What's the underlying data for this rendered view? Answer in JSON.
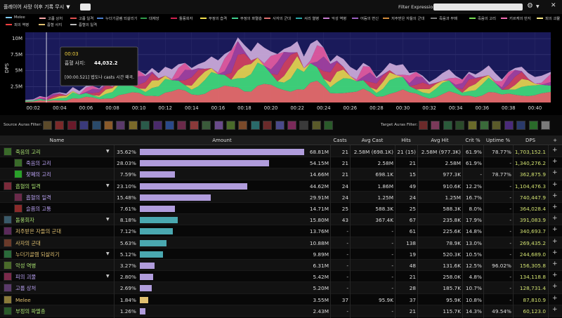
{
  "topbar": {
    "mode_label": "플레이어 사망 이후 기록 무시",
    "dropdown_icon": "chevron-down-icon",
    "filter_label": "Filter Expression:",
    "filter_value": "",
    "gear_icon": "gear-icon",
    "close_icon": "close-icon"
  },
  "legend": [
    {
      "label": "Melee",
      "color": "#7ec8f0"
    },
    {
      "label": "고룹 상처",
      "color": "#f7a8a8"
    },
    {
      "label": "고룹 일격",
      "color": "#e05050"
    },
    {
      "label": "누더기골렘 되살리기",
      "color": "#4a7fd0"
    },
    {
      "label": "대재앙",
      "color": "#2f9c4a"
    },
    {
      "label": "돌풍회자",
      "color": "#d02050"
    },
    {
      "label": "부정의 습격",
      "color": "#f4e04d"
    },
    {
      "label": "부정의 파멸층",
      "color": "#3fcf8e"
    },
    {
      "label": "사자의 군대",
      "color": "#e07070"
    },
    {
      "label": "서리 열병",
      "color": "#2aa8a8"
    },
    {
      "label": "악성 역병",
      "color": "#c87bd0"
    },
    {
      "label": "어둠의 변신",
      "color": "#9b5fc0"
    },
    {
      "label": "저주받은 자들의 군대",
      "color": "#d08a3a"
    },
    {
      "label": "죽음과 부패",
      "color": "#7a7a7a"
    },
    {
      "label": "죽음의 고리",
      "color": "#77dd55"
    },
    {
      "label": "키르케의 반지",
      "color": "#f06ab0"
    },
    {
      "label": "피의 괴물",
      "color": "#ffee88"
    },
    {
      "label": "피의 역병",
      "color": "#ff4040"
    },
    {
      "label": "흡혈 사지",
      "color": "#e0c070"
    },
    {
      "label": "흡혈의 일격",
      "color": "#bbbbbb"
    }
  ],
  "chart_data": {
    "type": "area",
    "title": "",
    "ylabel": "DPS",
    "xlabel": "",
    "x_ticks": [
      "00:02",
      "00:04",
      "00:06",
      "00:08",
      "00:10",
      "00:12",
      "00:14",
      "00:16",
      "00:18",
      "00:20",
      "00:22",
      "00:24",
      "00:26",
      "00:28",
      "00:30",
      "00:32",
      "00:34",
      "00:36",
      "00:38",
      "00:40"
    ],
    "y_ticks": [
      "2.5M",
      "5M",
      "7.5M",
      "10M"
    ],
    "ylim": [
      0,
      11000000
    ],
    "xlim": [
      1.4,
      41.2
    ],
    "total_series": [
      [
        1.4,
        0.4
      ],
      [
        2.0,
        0.5
      ],
      [
        2.5,
        1.0
      ],
      [
        3.0,
        0.8
      ],
      [
        3.5,
        1.4
      ],
      [
        4.0,
        1.6
      ],
      [
        4.5,
        1.4
      ],
      [
        5.0,
        2.4
      ],
      [
        5.5,
        1.8
      ],
      [
        6.0,
        2.6
      ],
      [
        6.5,
        2.6
      ],
      [
        7.0,
        2.2
      ],
      [
        7.5,
        3.2
      ],
      [
        8.0,
        3.0
      ],
      [
        8.5,
        4.2
      ],
      [
        9.0,
        4.0
      ],
      [
        9.5,
        4.6
      ],
      [
        10.0,
        5.0
      ],
      [
        10.5,
        4.4
      ],
      [
        11.0,
        5.4
      ],
      [
        11.5,
        4.6
      ],
      [
        12.0,
        5.6
      ],
      [
        12.5,
        5.2
      ],
      [
        13.0,
        6.0
      ],
      [
        13.5,
        6.2
      ],
      [
        14.0,
        5.4
      ],
      [
        14.5,
        6.0
      ],
      [
        15.0,
        6.4
      ],
      [
        15.5,
        7.2
      ],
      [
        16.0,
        6.6
      ],
      [
        16.5,
        7.6
      ],
      [
        17.0,
        8.2
      ],
      [
        17.5,
        10.2
      ],
      [
        18.0,
        9.0
      ],
      [
        18.5,
        8.0
      ],
      [
        19.0,
        9.4
      ],
      [
        19.5,
        8.6
      ],
      [
        20.0,
        8.0
      ],
      [
        20.5,
        7.6
      ],
      [
        21.0,
        8.4
      ],
      [
        21.5,
        8.8
      ],
      [
        22.0,
        9.6
      ],
      [
        22.5,
        7.2
      ],
      [
        23.0,
        9.2
      ],
      [
        23.5,
        9.8
      ],
      [
        24.0,
        8.6
      ],
      [
        24.5,
        6.4
      ],
      [
        25.0,
        7.4
      ],
      [
        25.5,
        6.8
      ],
      [
        26.0,
        5.6
      ],
      [
        26.5,
        5.0
      ],
      [
        27.0,
        6.2
      ],
      [
        27.5,
        5.6
      ],
      [
        28.0,
        4.0
      ],
      [
        28.5,
        5.0
      ],
      [
        29.0,
        6.2
      ],
      [
        29.5,
        5.8
      ],
      [
        30.0,
        6.0
      ],
      [
        30.5,
        4.6
      ],
      [
        31.0,
        4.8
      ],
      [
        31.5,
        4.2
      ],
      [
        32.0,
        3.2
      ],
      [
        32.5,
        3.8
      ],
      [
        33.0,
        4.6
      ],
      [
        33.5,
        5.2
      ],
      [
        34.0,
        4.2
      ],
      [
        34.5,
        3.6
      ],
      [
        35.0,
        4.8
      ],
      [
        35.5,
        4.4
      ],
      [
        36.0,
        5.0
      ],
      [
        36.5,
        5.8
      ],
      [
        37.0,
        4.6
      ],
      [
        37.5,
        3.6
      ],
      [
        38.0,
        4.8
      ],
      [
        38.5,
        5.4
      ],
      [
        39.0,
        5.6
      ],
      [
        39.5,
        4.6
      ],
      [
        40.0,
        4.0
      ],
      [
        40.5,
        4.2
      ],
      [
        41.2,
        4.8
      ]
    ],
    "grid": true,
    "tooltip": {
      "time": "00:03",
      "series": "흡혈 사지:",
      "value": "44,032.2",
      "event": "[00:00.521] 법도나 casts 시간 왜곡."
    }
  },
  "auras": {
    "source_label": "Source Auras Filter:",
    "target_label": "Target Auras Filter:",
    "source_colors": [
      "#5b4a2a",
      "#7a2a2a",
      "#6a1a2a",
      "#3a3a7a",
      "#2a4a6a",
      "#8a5a2a",
      "#5a3a6a",
      "#7a6a2a",
      "#2a5a4a",
      "#4a2a6a",
      "#2a4a8a",
      "#6a2a4a",
      "#8a3a3a",
      "#3a5a3a",
      "#6a4a8a",
      "#4a6a2a",
      "#7a4a2a",
      "#2a6a6a",
      "#6a2a2a",
      "#4a4a8a",
      "#7a2a5a",
      "#3a3a3a",
      "#5a5a2a",
      "#2a5a2a"
    ],
    "target_colors": [
      "#6a2a2a",
      "#7a3a5a",
      "#2a5a3a",
      "#2a4a2a",
      "#6a6a2a",
      "#3a6a3a",
      "#5a5a2a",
      "#4a2a7a",
      "#2a3a6a",
      "#2a6a2a",
      "#7a7a7a"
    ]
  },
  "table": {
    "headers": {
      "name": "Name",
      "amount": "Amount",
      "casts": "Casts",
      "avg_cast": "Avg Cast",
      "hits": "Hits",
      "avg_hit": "Avg Hit",
      "crit": "Crit %",
      "uptime": "Uptime %",
      "dps": "DPS",
      "plus": "+"
    },
    "rows": [
      {
        "name": "죽음의 고리",
        "color": "#a8e070",
        "indent": 0,
        "expand": true,
        "pct": "35.62%",
        "bar": 0.99,
        "bar_color": "#b09cdc",
        "amount": "68.81M",
        "casts": "21",
        "avg_cast": "2.58M (698.1K)",
        "hits": "21 (15)",
        "avg_hit": "2.58M (977.3K)",
        "crit": "61.9%",
        "uptime": "78.77%",
        "dps": "1,703,152.1",
        "icon": "#3a6a2a"
      },
      {
        "name": "죽음의 고리",
        "color": "#b8a0f0",
        "indent": 1,
        "expand": false,
        "pct": "28.03%",
        "bar": 0.78,
        "bar_color": "#b09cdc",
        "amount": "54.15M",
        "casts": "21",
        "avg_cast": "2.58M",
        "hits": "21",
        "avg_hit": "2.58M",
        "crit": "61.9%",
        "uptime": "-",
        "dps": "1,340,276.2",
        "icon": "#3a6a2a"
      },
      {
        "name": "찾폐의 고리",
        "color": "#b8a0f0",
        "indent": 1,
        "expand": false,
        "pct": "7.59%",
        "bar": 0.21,
        "bar_color": "#b09cdc",
        "amount": "14.66M",
        "casts": "21",
        "avg_cast": "698.1K",
        "hits": "15",
        "avg_hit": "977.3K",
        "crit": "-",
        "uptime": "78.77%",
        "dps": "362,875.9",
        "icon": "#2aa02a"
      },
      {
        "name": "흡혈의 일격",
        "color": "#a8e070",
        "indent": 0,
        "expand": true,
        "pct": "23.10%",
        "bar": 0.65,
        "bar_color": "#b09cdc",
        "amount": "44.62M",
        "casts": "24",
        "avg_cast": "1.86M",
        "hits": "49",
        "avg_hit": "910.6K",
        "crit": "12.2%",
        "uptime": "-",
        "dps": "1,104,476.3",
        "icon": "#7a2a3a"
      },
      {
        "name": "흡혈의 일격",
        "color": "#b8a0f0",
        "indent": 1,
        "expand": false,
        "pct": "15.48%",
        "bar": 0.43,
        "bar_color": "#b09cdc",
        "amount": "29.91M",
        "casts": "24",
        "avg_cast": "1.25M",
        "hits": "24",
        "avg_hit": "1.25M",
        "crit": "16.7%",
        "uptime": "-",
        "dps": "740,447.9",
        "icon": "#6a2a4a"
      },
      {
        "name": "슬픔의 고통",
        "color": "#b8a0f0",
        "indent": 1,
        "expand": false,
        "pct": "7.61%",
        "bar": 0.21,
        "bar_color": "#b09cdc",
        "amount": "14.71M",
        "casts": "25",
        "avg_cast": "588.3K",
        "hits": "25",
        "avg_hit": "588.3K",
        "crit": "8.0%",
        "uptime": "-",
        "dps": "364,028.4",
        "icon": "#8a2a2a"
      },
      {
        "name": "돌풍회자",
        "color": "#a8e070",
        "indent": 0,
        "expand": true,
        "pct": "8.18%",
        "bar": 0.23,
        "bar_color": "#4aa8b0",
        "amount": "15.80M",
        "casts": "43",
        "avg_cast": "367.4K",
        "hits": "67",
        "avg_hit": "235.8K",
        "crit": "17.9%",
        "uptime": "-",
        "dps": "391,083.9",
        "icon": "#3a5a6a"
      },
      {
        "name": "저주받은 자들의 군대",
        "color": "#e0c070",
        "indent": 0,
        "expand": false,
        "pct": "7.12%",
        "bar": 0.2,
        "bar_color": "#4aa8b0",
        "amount": "13.76M",
        "casts": "-",
        "avg_cast": "-",
        "hits": "61",
        "avg_hit": "225.6K",
        "crit": "14.8%",
        "uptime": "-",
        "dps": "340,693.7",
        "icon": "#5a2a5a"
      },
      {
        "name": "사자의 군대",
        "color": "#e0c070",
        "indent": 0,
        "expand": false,
        "pct": "5.63%",
        "bar": 0.16,
        "bar_color": "#4aa8b0",
        "amount": "10.88M",
        "casts": "-",
        "avg_cast": "-",
        "hits": "138",
        "avg_hit": "78.9K",
        "crit": "13.0%",
        "uptime": "-",
        "dps": "269,435.2",
        "icon": "#6a3a2a"
      },
      {
        "name": "누더기골렘 되살리기",
        "color": "#e0c070",
        "indent": 0,
        "expand": true,
        "pct": "5.12%",
        "bar": 0.14,
        "bar_color": "#4aa8b0",
        "amount": "9.89M",
        "casts": "-",
        "avg_cast": "-",
        "hits": "19",
        "avg_hit": "520.3K",
        "crit": "10.5%",
        "uptime": "-",
        "dps": "244,689.0",
        "icon": "#2a6a3a"
      },
      {
        "name": "악성 역병",
        "color": "#a8e070",
        "indent": 0,
        "expand": false,
        "pct": "3.27%",
        "bar": 0.09,
        "bar_color": "#b09cdc",
        "amount": "6.31M",
        "casts": "-",
        "avg_cast": "-",
        "hits": "48",
        "avg_hit": "131.6K",
        "crit": "12.5%",
        "uptime": "96.02%",
        "dps": "156,305.8",
        "icon": "#4a6a2a"
      },
      {
        "name": "피의 괴물",
        "color": "#b8a0f0",
        "indent": 0,
        "expand": true,
        "pct": "2.80%",
        "bar": 0.08,
        "bar_color": "#b09cdc",
        "amount": "5.42M",
        "casts": "-",
        "avg_cast": "-",
        "hits": "21",
        "avg_hit": "258.0K",
        "crit": "4.8%",
        "uptime": "-",
        "dps": "134,118.8",
        "icon": "#7a2a4a"
      },
      {
        "name": "고룹 상처",
        "color": "#b8a0f0",
        "indent": 0,
        "expand": false,
        "pct": "2.69%",
        "bar": 0.07,
        "bar_color": "#b09cdc",
        "amount": "5.20M",
        "casts": "-",
        "avg_cast": "-",
        "hits": "28",
        "avg_hit": "185.7K",
        "crit": "10.7%",
        "uptime": "-",
        "dps": "128,731.4",
        "icon": "#5a3a6a"
      },
      {
        "name": "Melee",
        "color": "#e0c070",
        "indent": 0,
        "expand": false,
        "pct": "1.84%",
        "bar": 0.05,
        "bar_color": "#e0c070",
        "amount": "3.55M",
        "casts": "37",
        "avg_cast": "95.9K",
        "hits": "37",
        "avg_hit": "95.9K",
        "crit": "10.8%",
        "uptime": "-",
        "dps": "87,810.9",
        "icon": "#8a7a3a"
      },
      {
        "name": "부정의 파멸층",
        "color": "#a8e070",
        "indent": 0,
        "expand": false,
        "pct": "1.26%",
        "bar": 0.035,
        "bar_color": "#b09cdc",
        "amount": "2.43M",
        "casts": "-",
        "avg_cast": "-",
        "hits": "21",
        "avg_hit": "115.7K",
        "crit": "14.3%",
        "uptime": "49.54%",
        "dps": "60,123.0",
        "icon": "#2a5a2a"
      }
    ]
  }
}
